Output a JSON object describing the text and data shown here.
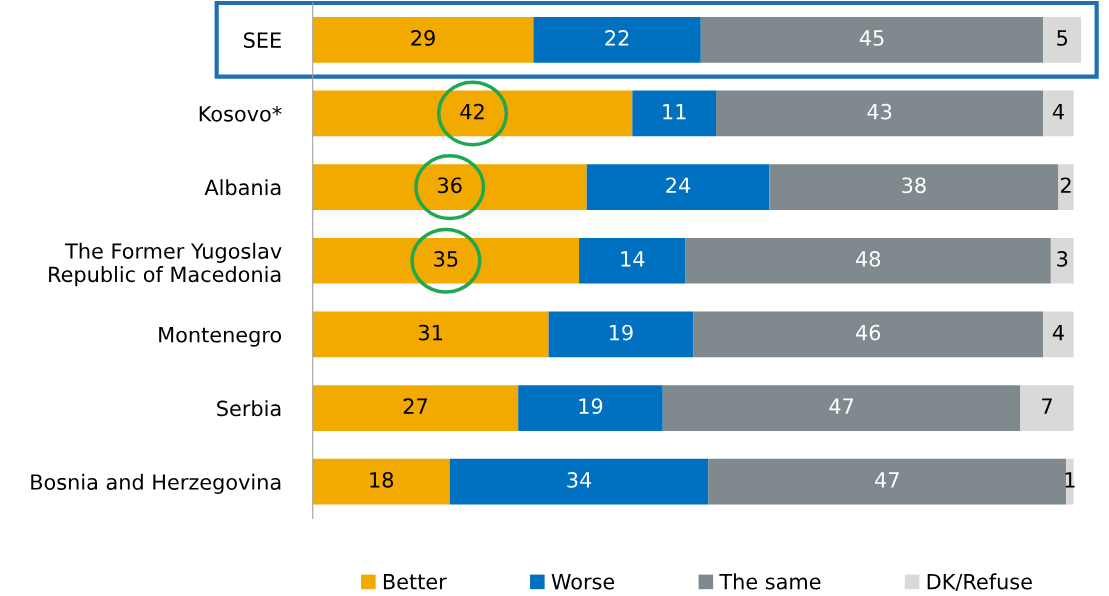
{
  "chart_data": {
    "type": "bar",
    "orientation": "horizontal",
    "stacked": true,
    "data_labels": true,
    "tick_labels": "y",
    "grid": false,
    "legend": "bottom",
    "categories": [
      "SEE",
      "Kosovo*",
      "Albania",
      "The Former Yugoslav\nRepublic of Macedonia",
      "Montenegro",
      "Serbia",
      "Bosnia and Herzegovina"
    ],
    "series": [
      {
        "name": "Better",
        "color": "#f2a900",
        "values": [
          29,
          42,
          36,
          35,
          31,
          27,
          18
        ]
      },
      {
        "name": "Worse",
        "color": "#0070c0",
        "values": [
          22,
          11,
          24,
          14,
          19,
          19,
          34
        ]
      },
      {
        "name": "The same",
        "color": "#7f898e",
        "values": [
          45,
          43,
          38,
          48,
          46,
          47,
          47
        ]
      },
      {
        "name": "DK/Refuse",
        "color": "#d9d9d9",
        "values": [
          5,
          4,
          2,
          3,
          4,
          7,
          1
        ]
      }
    ]
  }
}
